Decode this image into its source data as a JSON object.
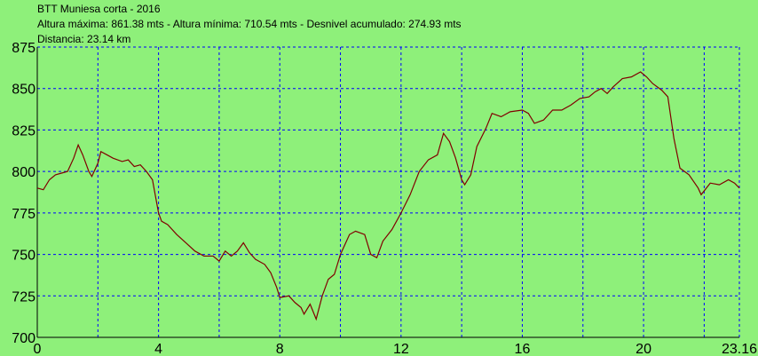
{
  "chart_data": {
    "type": "line",
    "title": "BTT Muniesa corta - 2016",
    "subtitle": "Altura máxima: 861.38 mts - Altura mínima: 710.54 mts - Desnivel acumulado: 274.93 mts",
    "annotations": [
      "Distancia: 23.14 km"
    ],
    "x": [
      0,
      0.2,
      0.4,
      0.6,
      0.8,
      1.0,
      1.2,
      1.35,
      1.5,
      1.7,
      1.8,
      2.0,
      2.1,
      2.3,
      2.5,
      2.8,
      3.0,
      3.2,
      3.4,
      3.6,
      3.8,
      4.0,
      4.1,
      4.3,
      4.6,
      4.9,
      5.2,
      5.5,
      5.8,
      6.0,
      6.2,
      6.4,
      6.6,
      6.8,
      7.0,
      7.2,
      7.5,
      7.7,
      7.9,
      8.0,
      8.3,
      8.5,
      8.7,
      8.8,
      9.0,
      9.2,
      9.4,
      9.6,
      9.8,
      10.0,
      10.3,
      10.5,
      10.8,
      11.0,
      11.2,
      11.4,
      11.7,
      12.0,
      12.3,
      12.6,
      12.9,
      13.2,
      13.4,
      13.6,
      13.8,
      14.0,
      14.1,
      14.3,
      14.5,
      14.8,
      15.0,
      15.3,
      15.6,
      16.0,
      16.2,
      16.4,
      16.7,
      17.0,
      17.3,
      17.6,
      17.9,
      18.2,
      18.4,
      18.6,
      18.8,
      19.0,
      19.3,
      19.6,
      19.9,
      20.1,
      20.3,
      20.6,
      20.8,
      21.0,
      21.2,
      21.5,
      21.8,
      21.9,
      22.2,
      22.5,
      22.8,
      23.0,
      23.16
    ],
    "series": [
      {
        "name": "Altura",
        "color": "#800000",
        "values": [
          790,
          789,
          795,
          798,
          799,
          800,
          808,
          816,
          810,
          800,
          797,
          805,
          812,
          810,
          808,
          806,
          807,
          803,
          804,
          800,
          795,
          775,
          770,
          768,
          762,
          757,
          752,
          749,
          749,
          746,
          752,
          749,
          752,
          757,
          751,
          747,
          744,
          739,
          730,
          724,
          725,
          721,
          718,
          714,
          720,
          711,
          725,
          735,
          738,
          750,
          762,
          764,
          762,
          750,
          748,
          758,
          765,
          775,
          786,
          800,
          807,
          810,
          823,
          818,
          808,
          795,
          792,
          798,
          815,
          826,
          835,
          833,
          836,
          837,
          835,
          829,
          831,
          837,
          837,
          840,
          844,
          845,
          848,
          850,
          847,
          851,
          856,
          857,
          860,
          857,
          853,
          849,
          845,
          820,
          802,
          798,
          790,
          786,
          793,
          792,
          795,
          793,
          790
        ]
      }
    ],
    "xlim": [
      0,
      23.16
    ],
    "xticks": [
      0,
      4,
      8,
      12,
      16,
      20,
      23.16
    ],
    "xgrid": [
      2,
      6,
      10,
      14,
      18,
      22
    ],
    "ylim": [
      700,
      875
    ],
    "yticks": [
      700,
      725,
      750,
      775,
      800,
      825,
      850,
      875
    ],
    "grid": true,
    "grid_color": "#0000ff",
    "background": "#8ef07a"
  }
}
